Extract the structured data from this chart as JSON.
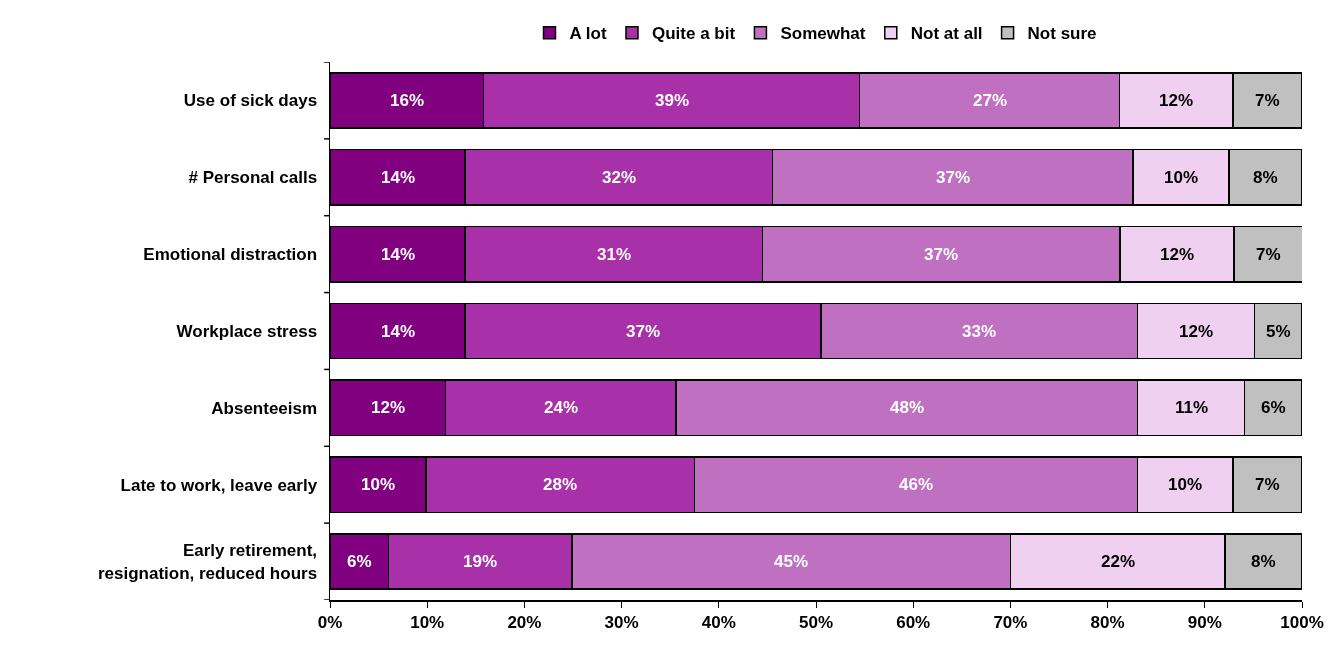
{
  "chart_data": {
    "type": "bar",
    "orientation": "horizontal",
    "stacked": true,
    "legend": "top",
    "grid": false,
    "categories": [
      "Use of sick days",
      "# Personal calls",
      "Emotional distraction",
      "Workplace stress",
      "Absenteeism",
      "Late to work, leave early",
      "Early retirement,\nresignation, reduced hours"
    ],
    "series": [
      {
        "name": "A lot",
        "color": "#800080",
        "values": [
          15.8,
          13.9,
          13.9,
          13.9,
          11.9,
          9.9,
          6.0
        ],
        "value_labels": [
          "16%",
          "14%",
          "14%",
          "14%",
          "12%",
          "10%",
          "6%"
        ]
      },
      {
        "name": "Quite a bit",
        "color": "#a830a8",
        "values": [
          38.7,
          31.6,
          30.6,
          36.6,
          23.7,
          27.6,
          18.9
        ],
        "value_labels": [
          "39%",
          "32%",
          "31%",
          "37%",
          "24%",
          "28%",
          "19%"
        ]
      },
      {
        "name": "Somewhat",
        "color": "#c070c0",
        "values": [
          26.7,
          37.1,
          36.8,
          32.6,
          47.5,
          45.6,
          45.1
        ],
        "value_labels": [
          "27%",
          "37%",
          "37%",
          "33%",
          "48%",
          "46%",
          "45%"
        ]
      },
      {
        "name": "Not at all",
        "color": "#f0d0f0",
        "values": [
          11.7,
          9.9,
          11.7,
          12.0,
          11.0,
          9.8,
          22.1
        ],
        "value_labels": [
          "12%",
          "10%",
          "12%",
          "12%",
          "11%",
          "10%",
          "22%"
        ]
      },
      {
        "name": "Not sure",
        "color": "#c0c0c0",
        "values": [
          7.1,
          7.5,
          7.1,
          4.9,
          5.9,
          7.1,
          7.9
        ],
        "value_labels": [
          "7%",
          "8%",
          "7%",
          "5%",
          "6%",
          "7%",
          "8%"
        ]
      }
    ],
    "xlim": [
      0,
      100
    ],
    "xticks": [
      {
        "value": 0,
        "label": "0%"
      },
      {
        "value": 10,
        "label": "10%"
      },
      {
        "value": 20,
        "label": "20%"
      },
      {
        "value": 30,
        "label": "30%"
      },
      {
        "value": 40,
        "label": "40%"
      },
      {
        "value": 50,
        "label": "50%"
      },
      {
        "value": 60,
        "label": "60%"
      },
      {
        "value": 70,
        "label": "70%"
      },
      {
        "value": 80,
        "label": "80%"
      },
      {
        "value": 90,
        "label": "90%"
      },
      {
        "value": 100,
        "label": "100%"
      }
    ]
  }
}
